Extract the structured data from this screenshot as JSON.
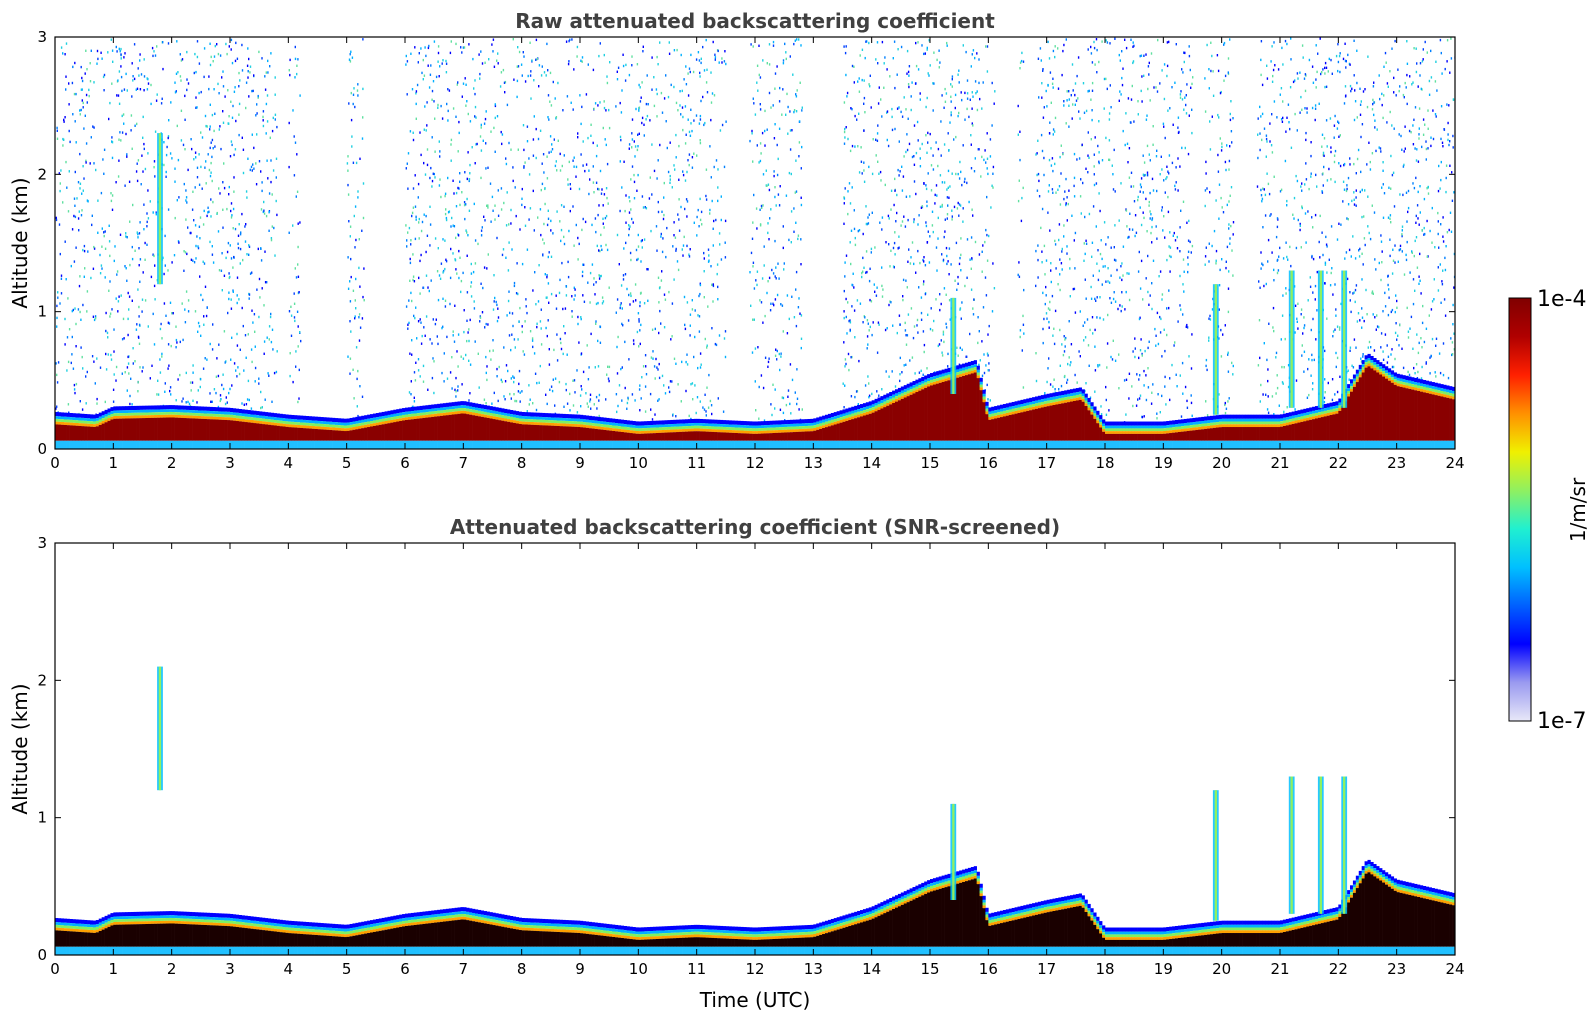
{
  "chart_data": [
    {
      "type": "heatmap",
      "title": "Raw attenuated backscattering coefficient",
      "xlabel": "",
      "ylabel": "Altitude (km)",
      "xlim": [
        0,
        24
      ],
      "ylim": [
        0,
        3
      ],
      "x_ticks": [
        0,
        1,
        2,
        3,
        4,
        5,
        6,
        7,
        8,
        9,
        10,
        11,
        12,
        13,
        14,
        15,
        16,
        17,
        18,
        19,
        20,
        21,
        22,
        23,
        24
      ],
      "y_ticks": [
        0,
        1,
        2,
        3
      ],
      "boundary_layer_top_km": [
        [
          0,
          0.27
        ],
        [
          0.7,
          0.25
        ],
        [
          1,
          0.31
        ],
        [
          2,
          0.32
        ],
        [
          3,
          0.3
        ],
        [
          4,
          0.25
        ],
        [
          5,
          0.22
        ],
        [
          6,
          0.3
        ],
        [
          7,
          0.35
        ],
        [
          8,
          0.27
        ],
        [
          9,
          0.25
        ],
        [
          10,
          0.2
        ],
        [
          11,
          0.22
        ],
        [
          12,
          0.2
        ],
        [
          13,
          0.22
        ],
        [
          14,
          0.35
        ],
        [
          15,
          0.55
        ],
        [
          15.8,
          0.65
        ],
        [
          16,
          0.3
        ],
        [
          17,
          0.4
        ],
        [
          17.6,
          0.45
        ],
        [
          18,
          0.2
        ],
        [
          19,
          0.2
        ],
        [
          20,
          0.25
        ],
        [
          21,
          0.25
        ],
        [
          22,
          0.35
        ],
        [
          22.5,
          0.7
        ],
        [
          23,
          0.55
        ],
        [
          24,
          0.45
        ]
      ],
      "cloud_plumes": [
        [
          1.8,
          1.2,
          2.3
        ],
        [
          15.4,
          0.4,
          1.1
        ],
        [
          19.9,
          0.25,
          1.2
        ],
        [
          21.2,
          0.3,
          1.3
        ],
        [
          21.7,
          0.3,
          1.3
        ],
        [
          22.1,
          0.3,
          1.3
        ]
      ],
      "noise_bands_hours": [
        [
          0,
          3.8
        ],
        [
          4,
          4.2
        ],
        [
          5,
          5.3
        ],
        [
          6,
          9.5
        ],
        [
          9.6,
          10.7
        ],
        [
          10.7,
          11.5
        ],
        [
          11.9,
          12.8
        ],
        [
          13.5,
          14.6
        ],
        [
          14.6,
          16.1
        ],
        [
          16.5,
          16.6
        ],
        [
          16.8,
          17.8
        ],
        [
          17.8,
          19.5
        ],
        [
          19.7,
          20.2
        ],
        [
          20.6,
          24
        ]
      ]
    },
    {
      "type": "heatmap",
      "title": "Attenuated backscattering coefficient (SNR-screened)",
      "xlabel": "Time (UTC)",
      "ylabel": "Altitude (km)",
      "xlim": [
        0,
        24
      ],
      "ylim": [
        0,
        3
      ],
      "x_ticks": [
        0,
        1,
        2,
        3,
        4,
        5,
        6,
        7,
        8,
        9,
        10,
        11,
        12,
        13,
        14,
        15,
        16,
        17,
        18,
        19,
        20,
        21,
        22,
        23,
        24
      ],
      "y_ticks": [
        0,
        1,
        2,
        3
      ],
      "boundary_layer_top_km": [
        [
          0,
          0.27
        ],
        [
          0.7,
          0.25
        ],
        [
          1,
          0.31
        ],
        [
          2,
          0.32
        ],
        [
          3,
          0.3
        ],
        [
          4,
          0.25
        ],
        [
          5,
          0.22
        ],
        [
          6,
          0.3
        ],
        [
          7,
          0.35
        ],
        [
          8,
          0.27
        ],
        [
          9,
          0.25
        ],
        [
          10,
          0.2
        ],
        [
          11,
          0.22
        ],
        [
          12,
          0.2
        ],
        [
          13,
          0.22
        ],
        [
          14,
          0.35
        ],
        [
          15,
          0.55
        ],
        [
          15.8,
          0.65
        ],
        [
          16,
          0.3
        ],
        [
          17,
          0.4
        ],
        [
          17.6,
          0.45
        ],
        [
          18,
          0.2
        ],
        [
          19,
          0.2
        ],
        [
          20,
          0.25
        ],
        [
          21,
          0.25
        ],
        [
          22,
          0.35
        ],
        [
          22.5,
          0.7
        ],
        [
          23,
          0.55
        ],
        [
          24,
          0.45
        ]
      ],
      "cloud_plumes": [
        [
          1.8,
          1.2,
          2.1
        ],
        [
          15.4,
          0.4,
          1.1
        ],
        [
          19.9,
          0.25,
          1.2
        ],
        [
          21.2,
          0.3,
          1.3
        ],
        [
          21.7,
          0.3,
          1.3
        ],
        [
          22.1,
          0.3,
          1.3
        ]
      ]
    }
  ],
  "colorbar": {
    "label": "1/m/sr",
    "max_label": "1e-4",
    "min_label": "1e-7",
    "colors": [
      "#e8e8f8",
      "#9a9af0",
      "#0000ff",
      "#0060ff",
      "#00c0ff",
      "#20f0d0",
      "#90f060",
      "#f0f000",
      "#ff9000",
      "#ff2000",
      "#b00000",
      "#800000"
    ]
  }
}
